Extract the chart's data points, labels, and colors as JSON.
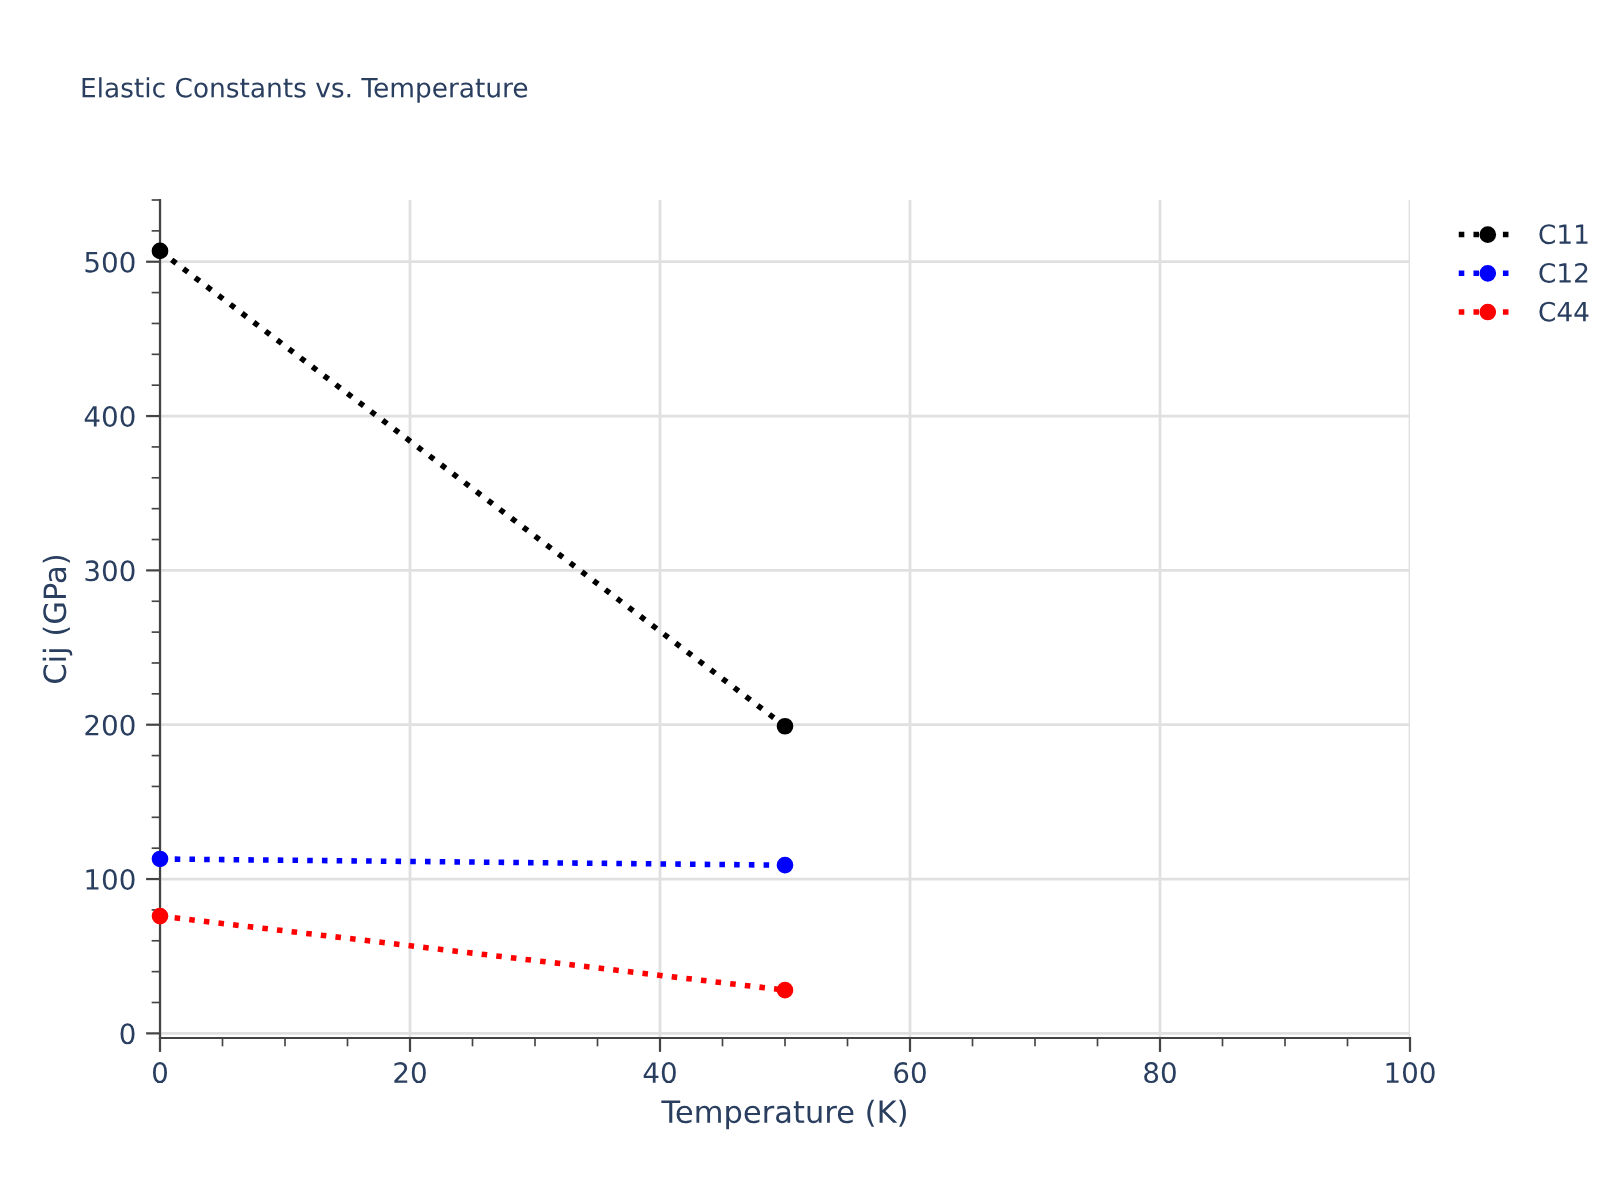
{
  "chart_data": {
    "type": "line",
    "title": "Elastic Constants vs. Temperature",
    "xlabel": "Temperature (K)",
    "ylabel": "Cij (GPa)",
    "series": [
      {
        "name": "C11",
        "color": "#000000",
        "values": [
          507,
          199
        ]
      },
      {
        "name": "C12",
        "color": "#0000ff",
        "values": [
          113,
          109
        ]
      },
      {
        "name": "C44",
        "color": "#ff0000",
        "values": [
          76,
          28
        ]
      }
    ],
    "x": [
      0,
      50
    ],
    "xlim": [
      0,
      100
    ],
    "xticks": [
      0,
      20,
      40,
      60,
      80,
      100
    ],
    "ylim": [
      -3,
      540
    ],
    "yticks": [
      0,
      100,
      200,
      300,
      400,
      500
    ],
    "grid": true,
    "legend": "top right",
    "marker": "circle",
    "line_style": "dotted"
  }
}
